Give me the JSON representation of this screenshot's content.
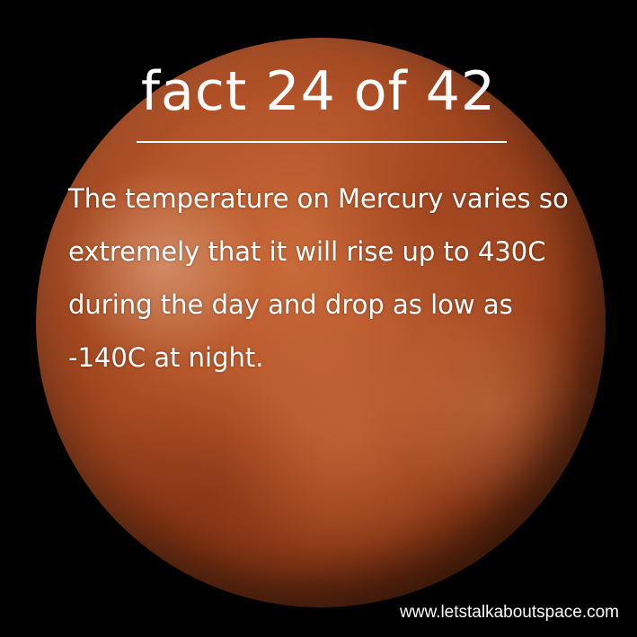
{
  "title": "fact 24 of 42",
  "body": "The temperature on Mercury varies so extremely that it will rise up to 430C during the day and drop as low as -140C at night.",
  "footer_url": "www.letstalkaboutspace.com",
  "colors": {
    "background": "#000000",
    "text": "#ffffff",
    "planet": "#b4542a"
  }
}
